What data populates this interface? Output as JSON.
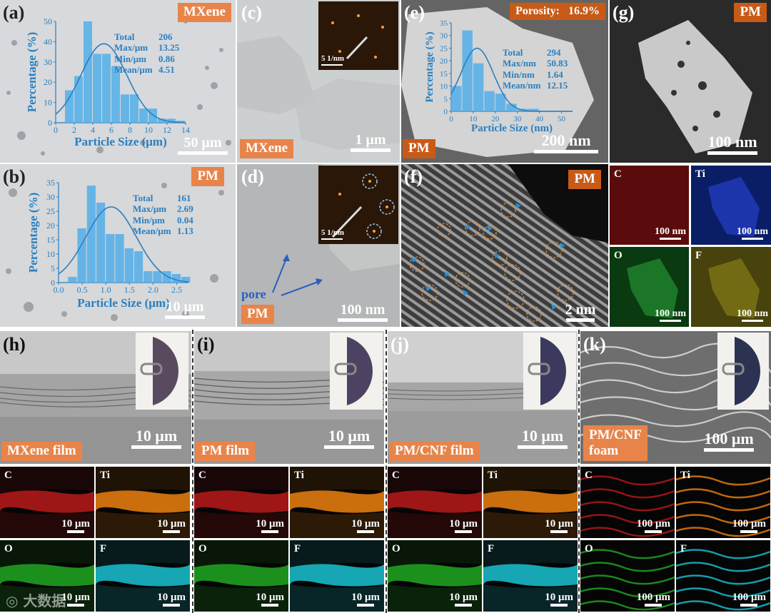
{
  "panels": {
    "a": {
      "label": "(a)",
      "tag": "MXene",
      "scale": "50 μm"
    },
    "b": {
      "label": "(b)",
      "tag": "PM",
      "scale": "10 μm"
    },
    "c": {
      "label": "(c)",
      "tag": "MXene",
      "scale": "1 μm",
      "inset_scale": "5 1/nm"
    },
    "d": {
      "label": "(d)",
      "tag": "PM",
      "scale": "100 nm",
      "inset_scale": "5 1/nm",
      "pore": "pore"
    },
    "e": {
      "label": "(e)",
      "tag": "PM",
      "scale": "200 nm",
      "porosity_label": "Porosity:",
      "porosity_value": "16.9%"
    },
    "f": {
      "label": "(f)",
      "tag": "PM",
      "scale": "2 nm"
    },
    "g": {
      "label": "(g)",
      "tag": "PM",
      "scale": "100 nm",
      "maps": [
        {
          "el": "C",
          "scale": "100 nm"
        },
        {
          "el": "Ti",
          "scale": "100 nm"
        },
        {
          "el": "O",
          "scale": "100 nm"
        },
        {
          "el": "F",
          "scale": "100 nm"
        }
      ]
    },
    "h": {
      "label": "(h)",
      "tag": "MXene film",
      "scale": "10 μm",
      "maps": [
        {
          "el": "C",
          "scale": "10 μm"
        },
        {
          "el": "Ti",
          "scale": "10 μm"
        },
        {
          "el": "O",
          "scale": "10 μm"
        },
        {
          "el": "F",
          "scale": "10 μm"
        }
      ]
    },
    "i": {
      "label": "(i)",
      "tag": "PM film",
      "scale": "10 μm",
      "maps": [
        {
          "el": "C",
          "scale": "10 μm"
        },
        {
          "el": "Ti",
          "scale": "10 μm"
        },
        {
          "el": "O",
          "scale": "10 μm"
        },
        {
          "el": "F",
          "scale": "10 μm"
        }
      ]
    },
    "j": {
      "label": "(j)",
      "tag": "PM/CNF film",
      "scale": "10 μm",
      "maps": [
        {
          "el": "C",
          "scale": "10 μm"
        },
        {
          "el": "Ti",
          "scale": "10 μm"
        },
        {
          "el": "O",
          "scale": "10 μm"
        },
        {
          "el": "F",
          "scale": "10 μm"
        }
      ]
    },
    "k": {
      "label": "(k)",
      "tag1": "PM/CNF",
      "tag2": "foam",
      "scale": "100 μm",
      "maps": [
        {
          "el": "C",
          "scale": "100 μm"
        },
        {
          "el": "Ti",
          "scale": "100 μm"
        },
        {
          "el": "O",
          "scale": "100 μm"
        },
        {
          "el": "F",
          "scale": "100 μm"
        }
      ]
    }
  },
  "watermark": "大数据",
  "colors": {
    "tag": "#e8844a",
    "bar": "#5ab0e8",
    "curve": "#2a7fc0",
    "C": "#b01818",
    "Ti": "#e07a10",
    "O": "#1fa020",
    "F": "#18b8c8",
    "Ti_g": "#1c2fc8",
    "F_g": "#b0a818"
  },
  "chart_data": [
    {
      "type": "bar",
      "panel": "a",
      "xlabel": "Particle Size (μm)",
      "ylabel": "Percentage (%)",
      "xlim": [
        0,
        14
      ],
      "ylim": [
        0,
        50
      ],
      "xticks": [
        0,
        2,
        4,
        6,
        8,
        10,
        12,
        14
      ],
      "yticks": [
        0,
        10,
        20,
        30,
        40,
        50
      ],
      "bin_width": 1,
      "x": [
        1.5,
        2.5,
        3.5,
        4.5,
        5.5,
        6.5,
        7.5,
        8.5,
        9.5,
        10.5,
        11.5,
        12.5,
        13.5
      ],
      "values": [
        16,
        23,
        50,
        34,
        34,
        28,
        14,
        14,
        7,
        7,
        2,
        2,
        1
      ],
      "stats": [
        {
          "k": "Total",
          "v": "206"
        },
        {
          "k": "Max/μm",
          "v": "13.25"
        },
        {
          "k": "Min/μm",
          "v": "0.86"
        },
        {
          "k": "Mean/μm",
          "v": "4.51"
        }
      ]
    },
    {
      "type": "bar",
      "panel": "b",
      "xlabel": "Particle Size (μm)",
      "ylabel": "Percentage (%)",
      "xlim": [
        0,
        2.75
      ],
      "ylim": [
        0,
        35
      ],
      "xticks": [
        0.0,
        0.5,
        1.0,
        1.5,
        2.0,
        2.5
      ],
      "xtick_labels": [
        "0.0",
        "0.5",
        "1.0",
        "1.5",
        "2.0",
        "2.5"
      ],
      "yticks": [
        0,
        5,
        10,
        15,
        20,
        25,
        30,
        35
      ],
      "bin_width": 0.2,
      "x": [
        0.3,
        0.5,
        0.7,
        0.9,
        1.1,
        1.3,
        1.5,
        1.7,
        1.9,
        2.1,
        2.3,
        2.5,
        2.7
      ],
      "values": [
        2,
        19,
        34,
        28,
        17,
        17,
        12,
        11,
        4,
        4,
        4,
        3,
        2
      ],
      "stats": [
        {
          "k": "Total",
          "v": "161"
        },
        {
          "k": "Max/μm",
          "v": "2.69"
        },
        {
          "k": "Min/μm",
          "v": "0.04"
        },
        {
          "k": "Mean/μm",
          "v": "1.13"
        }
      ]
    },
    {
      "type": "bar",
      "panel": "e",
      "xlabel": "Particle Size (nm)",
      "ylabel": "Percentage (%)",
      "xlim": [
        0,
        55
      ],
      "ylim": [
        0,
        35
      ],
      "xticks": [
        0,
        10,
        20,
        30,
        40,
        50
      ],
      "yticks": [
        0,
        5,
        10,
        15,
        20,
        25,
        30,
        35
      ],
      "bin_width": 5,
      "x": [
        2.5,
        7.5,
        12.5,
        17.5,
        22.5,
        27.5,
        32.5,
        37.5,
        42.5,
        47.5
      ],
      "values": [
        10,
        32,
        19,
        8,
        7,
        3,
        1,
        1,
        0,
        0
      ],
      "stats": [
        {
          "k": "Total",
          "v": "294"
        },
        {
          "k": "Max/nm",
          "v": "50.83"
        },
        {
          "k": "Min/nm",
          "v": "1.64"
        },
        {
          "k": "Mean/nm",
          "v": "12.15"
        }
      ]
    }
  ]
}
